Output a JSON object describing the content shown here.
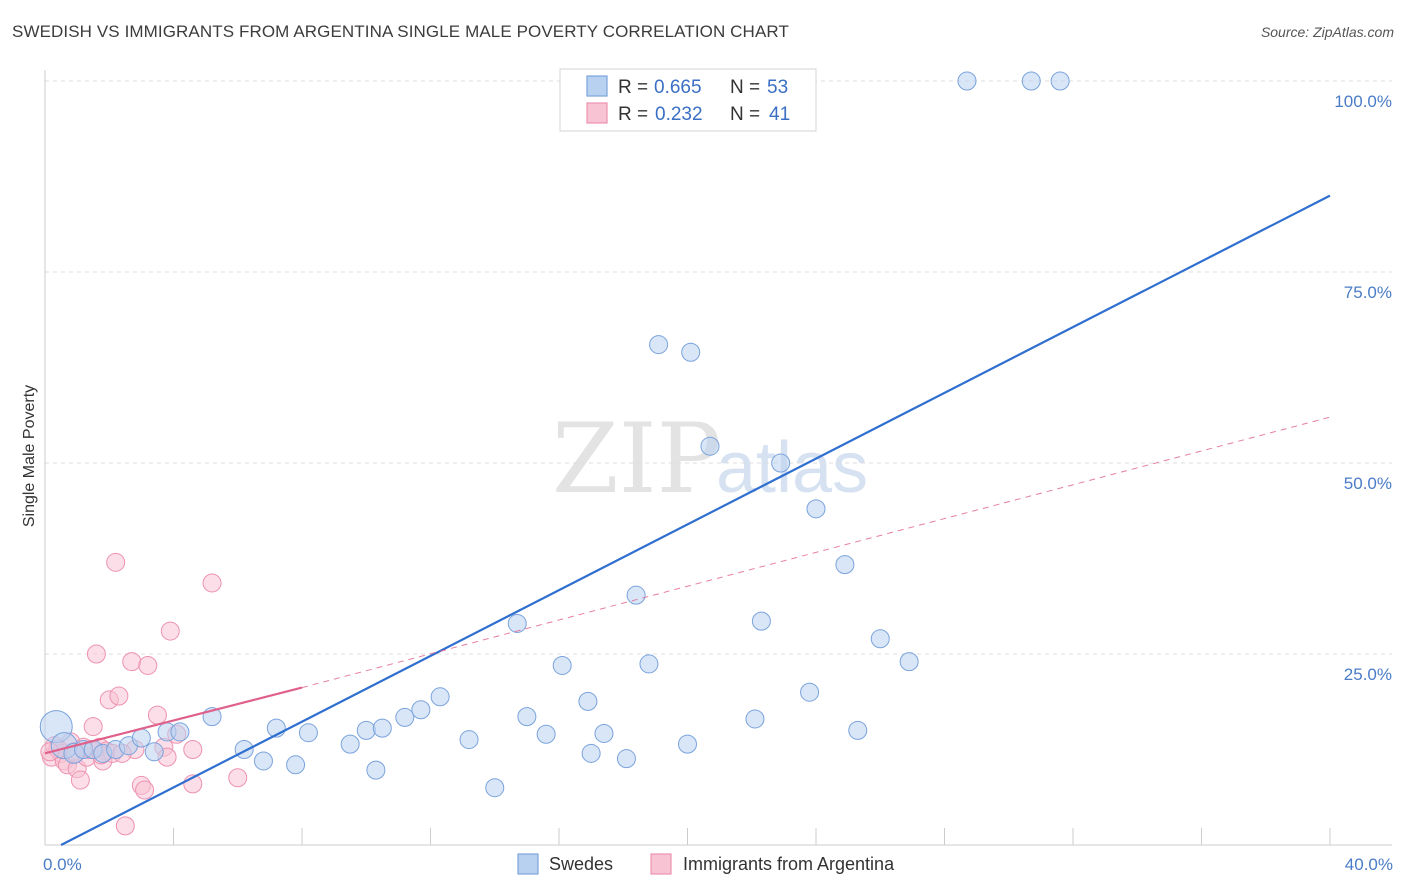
{
  "title": "SWEDISH VS IMMIGRANTS FROM ARGENTINA SINGLE MALE POVERTY CORRELATION CHART",
  "source": "Source: ZipAtlas.com",
  "watermark": {
    "zip": "ZIP",
    "atlas": "atlas"
  },
  "legend_top": {
    "rows": [
      {
        "r_label": "R =",
        "r_value": "0.665",
        "n_label": "N =",
        "n_value": "53"
      },
      {
        "r_label": "R =",
        "r_value": "0.232",
        "n_label": "N =",
        "n_value": "41"
      }
    ]
  },
  "legend_bottom": {
    "items": [
      "Swedes",
      "Immigrants from Argentina"
    ]
  },
  "colors": {
    "blue_fill": "#b9d1f0",
    "blue_stroke": "#7aa3dc",
    "blue_line": "#2f6fd0",
    "pink_fill": "#f8c3d3",
    "pink_stroke": "#ee92b0",
    "pink_line": "#e0608c",
    "grid": "#dddddd",
    "tick_text": "#4a7cc7"
  },
  "chart_data": {
    "type": "scatter",
    "title": "SWEDISH VS IMMIGRANTS FROM ARGENTINA SINGLE MALE POVERTY CORRELATION CHART",
    "xlabel": "",
    "ylabel": "Single Male Poverty",
    "xlim": [
      0,
      40
    ],
    "ylim": [
      0,
      102
    ],
    "x_tick_labels": [
      {
        "value": 0,
        "label": "0.0%"
      },
      {
        "value": 40,
        "label": "40.0%"
      }
    ],
    "y_tick_labels": [
      {
        "value": 25,
        "label": "25.0%"
      },
      {
        "value": 50,
        "label": "50.0%"
      },
      {
        "value": 75,
        "label": "75.0%"
      },
      {
        "value": 100,
        "label": "100.0%"
      }
    ],
    "series": [
      {
        "name": "Swedes",
        "R": 0.665,
        "N": 53,
        "points": [
          [
            0.35,
            15.5,
            16
          ],
          [
            0.6,
            13.0,
            13
          ],
          [
            0.9,
            12.0,
            10
          ],
          [
            1.2,
            12.5,
            9
          ],
          [
            1.5,
            12.5,
            9
          ],
          [
            1.8,
            12.0,
            9
          ],
          [
            2.2,
            12.5,
            9
          ],
          [
            2.6,
            13.0,
            9
          ],
          [
            3.0,
            14.0,
            9
          ],
          [
            3.4,
            12.2,
            9
          ],
          [
            3.8,
            14.8,
            9
          ],
          [
            4.2,
            14.8,
            9
          ],
          [
            5.2,
            16.8,
            9
          ],
          [
            6.2,
            12.5,
            9
          ],
          [
            7.2,
            15.3,
            9
          ],
          [
            8.2,
            14.7,
            9
          ],
          [
            9.5,
            13.2,
            9
          ],
          [
            10.0,
            15.0,
            9
          ],
          [
            10.5,
            15.3,
            9
          ],
          [
            11.2,
            16.7,
            9
          ],
          [
            11.7,
            17.7,
            9
          ],
          [
            12.3,
            19.4,
            9
          ],
          [
            13.2,
            13.8,
            9
          ],
          [
            14.0,
            7.5,
            9
          ],
          [
            14.7,
            29.0,
            9
          ],
          [
            15.0,
            16.8,
            9
          ],
          [
            15.6,
            14.5,
            9
          ],
          [
            16.1,
            23.5,
            9
          ],
          [
            16.9,
            18.8,
            9
          ],
          [
            17.4,
            14.6,
            9
          ],
          [
            18.1,
            11.3,
            9
          ],
          [
            18.4,
            32.7,
            9
          ],
          [
            18.8,
            23.7,
            9
          ],
          [
            19.1,
            65.5,
            9
          ],
          [
            20.1,
            64.5,
            9
          ],
          [
            20.7,
            52.2,
            9
          ],
          [
            22.1,
            16.5,
            9
          ],
          [
            22.3,
            29.3,
            9
          ],
          [
            22.9,
            50.0,
            9
          ],
          [
            23.8,
            20.0,
            9
          ],
          [
            24.0,
            44.0,
            9
          ],
          [
            24.9,
            36.7,
            9
          ],
          [
            25.3,
            15.0,
            9
          ],
          [
            26.0,
            27.0,
            9
          ],
          [
            26.9,
            24.0,
            9
          ],
          [
            28.7,
            100.0,
            9
          ],
          [
            30.7,
            100.0,
            9
          ],
          [
            31.6,
            100.0,
            9
          ],
          [
            20.0,
            13.2,
            9
          ],
          [
            17.0,
            12.0,
            9
          ],
          [
            6.8,
            11.0,
            9
          ],
          [
            7.8,
            10.5,
            9
          ],
          [
            10.3,
            9.8,
            9
          ]
        ],
        "trendline": {
          "x0": 0.5,
          "y0": 0.0,
          "x1": 40.0,
          "y1": 85.0
        }
      },
      {
        "name": "Immigrants from Argentina",
        "R": 0.232,
        "N": 41,
        "points": [
          [
            0.2,
            11.5,
            9
          ],
          [
            0.3,
            13.0,
            9
          ],
          [
            0.5,
            12.0,
            9
          ],
          [
            0.6,
            11.0,
            9
          ],
          [
            0.7,
            10.5,
            9
          ],
          [
            0.8,
            13.5,
            9
          ],
          [
            0.9,
            12.2,
            9
          ],
          [
            1.0,
            10.0,
            9
          ],
          [
            1.1,
            8.5,
            9
          ],
          [
            1.3,
            11.5,
            9
          ],
          [
            1.4,
            12.5,
            9
          ],
          [
            1.5,
            15.5,
            9
          ],
          [
            1.6,
            25.0,
            9
          ],
          [
            1.7,
            12.8,
            9
          ],
          [
            1.8,
            11.0,
            9
          ],
          [
            1.9,
            12.3,
            9
          ],
          [
            2.0,
            19.0,
            9
          ],
          [
            2.1,
            12.0,
            9
          ],
          [
            2.2,
            37.0,
            9
          ],
          [
            2.3,
            19.5,
            9
          ],
          [
            2.5,
            2.5,
            9
          ],
          [
            2.7,
            24.0,
            9
          ],
          [
            2.8,
            12.5,
            9
          ],
          [
            3.0,
            7.8,
            9
          ],
          [
            3.1,
            7.2,
            9
          ],
          [
            3.2,
            23.5,
            9
          ],
          [
            3.5,
            17.0,
            9
          ],
          [
            3.7,
            12.8,
            9
          ],
          [
            3.8,
            11.5,
            9
          ],
          [
            3.9,
            28.0,
            9
          ],
          [
            4.1,
            14.5,
            9
          ],
          [
            4.6,
            12.5,
            9
          ],
          [
            4.6,
            8.0,
            9
          ],
          [
            5.2,
            34.3,
            9
          ],
          [
            6.0,
            8.8,
            9
          ],
          [
            0.4,
            12.6,
            9
          ],
          [
            1.2,
            12.8,
            9
          ],
          [
            2.4,
            12.0,
            9
          ],
          [
            0.15,
            12.2,
            9
          ],
          [
            0.95,
            12.0,
            9
          ],
          [
            1.75,
            11.8,
            9
          ]
        ],
        "trendline_solid": {
          "x0": 0.0,
          "y0": 12.0,
          "x1": 8.0,
          "y1": 20.6
        },
        "trendline_dashed": {
          "x0": 8.0,
          "y0": 20.6,
          "x1": 40.0,
          "y1": 56.0
        }
      }
    ]
  }
}
